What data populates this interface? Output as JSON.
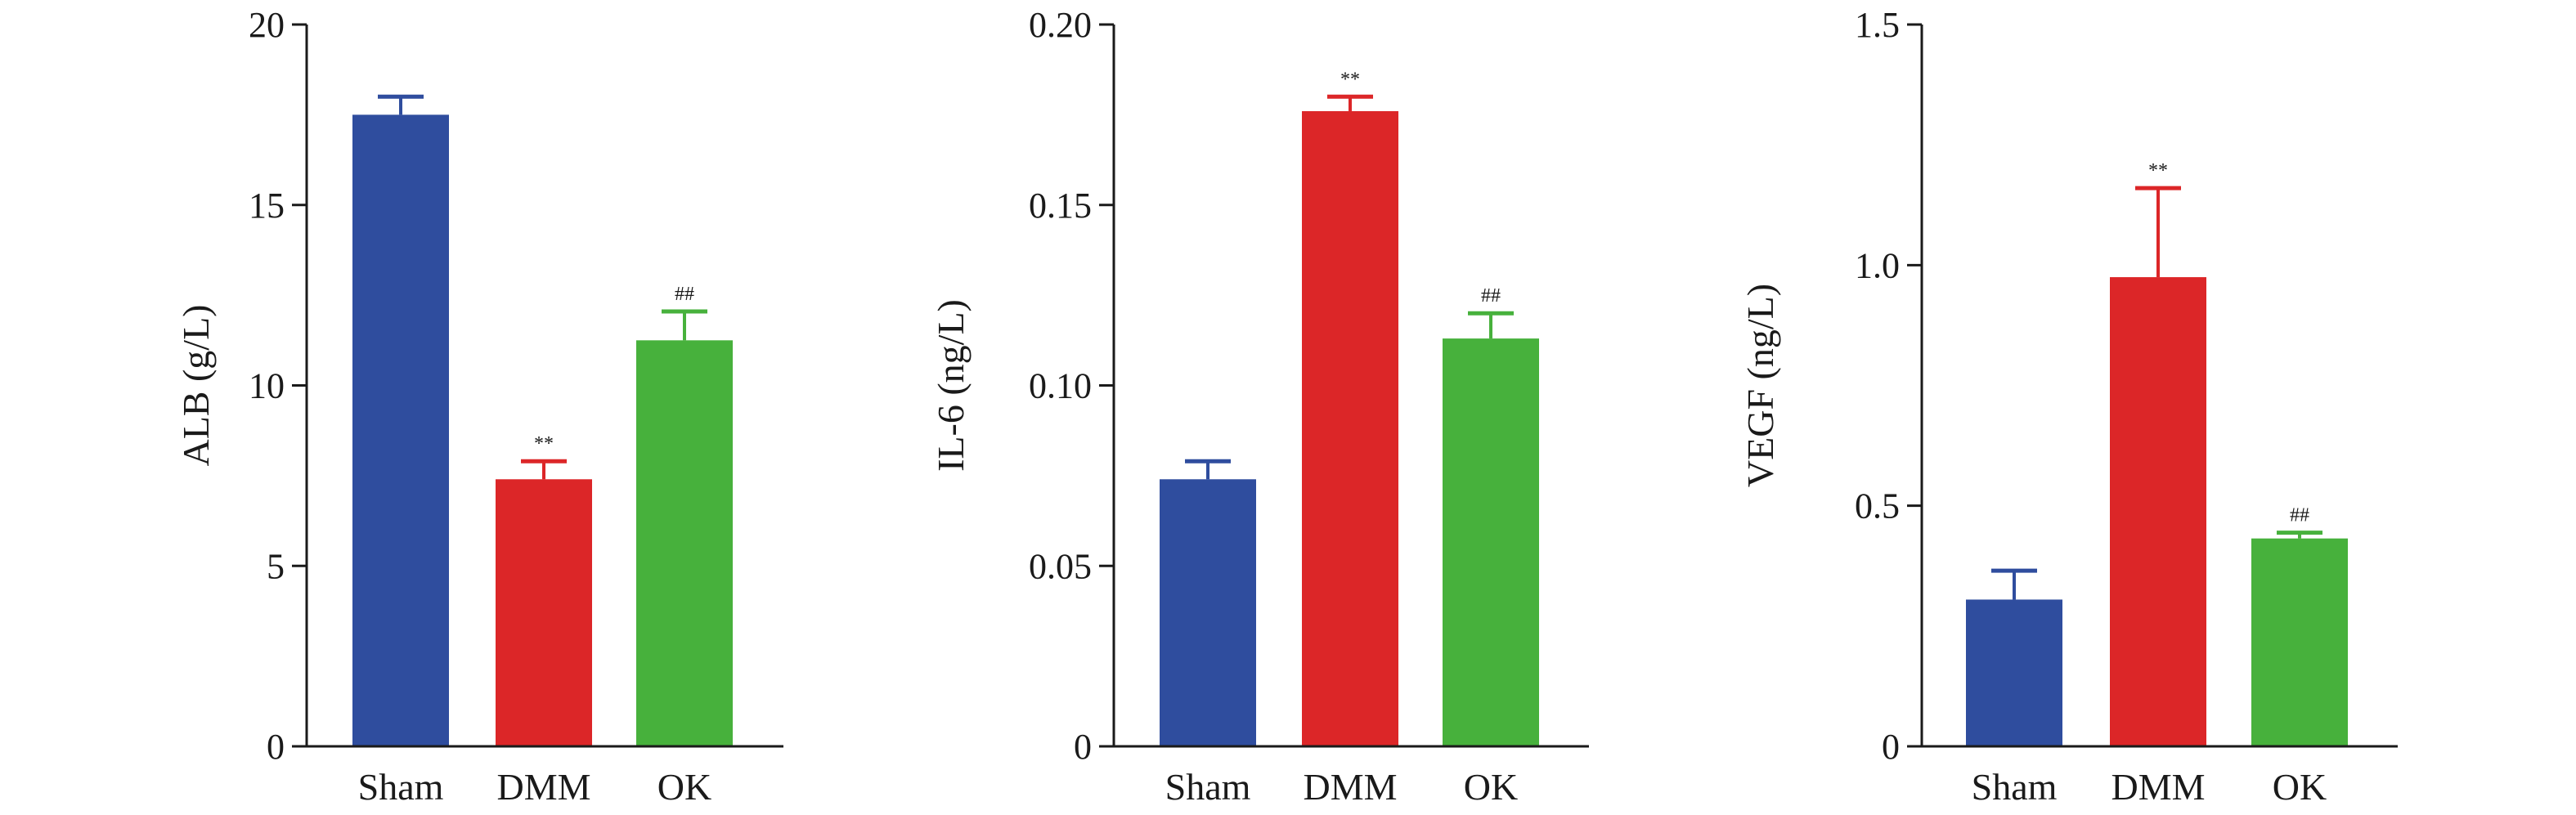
{
  "colors": {
    "Sham": "#2f4d9e",
    "DMM": "#dc2628",
    "OK": "#47b13c",
    "axis": "#1a1a1a"
  },
  "chart_data": [
    {
      "type": "bar",
      "categories": [
        "Sham",
        "DMM",
        "OK"
      ],
      "values": [
        17.5,
        7.4,
        11.25
      ],
      "errors": [
        0.5,
        0.5,
        0.8
      ],
      "annotations": [
        "",
        "**",
        "##"
      ],
      "ylabel": "ALB (g/L)",
      "xlabel": "",
      "title": "",
      "ylim": [
        0,
        20
      ],
      "yticks": [
        0,
        5,
        10,
        15,
        20
      ],
      "ytick_labels": [
        "0",
        "5",
        "10",
        "15",
        "20"
      ]
    },
    {
      "type": "bar",
      "categories": [
        "Sham",
        "DMM",
        "OK"
      ],
      "values": [
        0.074,
        0.176,
        0.113
      ],
      "errors": [
        0.005,
        0.004,
        0.007
      ],
      "annotations": [
        "",
        "**",
        "##"
      ],
      "ylabel": "IL-6 (ng/L)",
      "xlabel": "",
      "title": "",
      "ylim": [
        0,
        0.2
      ],
      "yticks": [
        0,
        0.05,
        0.1,
        0.15,
        0.2
      ],
      "ytick_labels": [
        "0",
        "0.05",
        "0.10",
        "0.15",
        "0.20"
      ]
    },
    {
      "type": "bar",
      "categories": [
        "Sham",
        "DMM",
        "OK"
      ],
      "values": [
        0.305,
        0.975,
        0.432
      ],
      "errors": [
        0.06,
        0.185,
        0.012
      ],
      "annotations": [
        "",
        "**",
        "##"
      ],
      "ylabel": "VEGF (ng/L)",
      "xlabel": "",
      "title": "",
      "ylim": [
        0,
        1.5
      ],
      "yticks": [
        0,
        0.5,
        1.0,
        1.5
      ],
      "ytick_labels": [
        "0",
        "0.5",
        "1.0",
        "1.5"
      ]
    }
  ]
}
